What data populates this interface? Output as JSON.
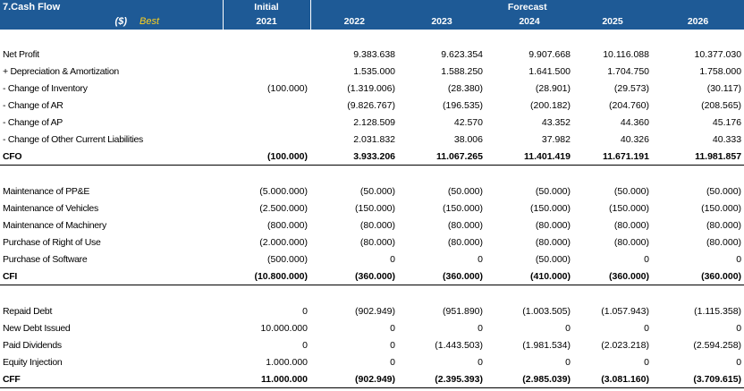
{
  "header": {
    "title": "7.Cash Flow",
    "currency": "($)",
    "scenario": "Best",
    "initial_label": "Initial",
    "initial_year": "2021",
    "forecast_label": "Forecast",
    "years": [
      "2022",
      "2023",
      "2024",
      "2025",
      "2026"
    ]
  },
  "rows": [
    {
      "type": "gap"
    },
    {
      "label": "Net Profit",
      "initial": "",
      "vals": [
        "9.383.638",
        "9.623.354",
        "9.907.668",
        "10.116.088",
        "10.377.030"
      ]
    },
    {
      "label": " + Depreciation & Amortization",
      "initial": "",
      "vals": [
        "1.535.000",
        "1.588.250",
        "1.641.500",
        "1.704.750",
        "1.758.000"
      ]
    },
    {
      "label": " - Change of Inventory",
      "initial": "(100.000)",
      "vals": [
        "(1.319.006)",
        "(28.380)",
        "(28.901)",
        "(29.573)",
        "(30.117)"
      ]
    },
    {
      "label": " - Change of AR",
      "initial": "",
      "vals": [
        "(9.826.767)",
        "(196.535)",
        "(200.182)",
        "(204.760)",
        "(208.565)"
      ]
    },
    {
      "label": " - Change of AP",
      "initial": "",
      "vals": [
        "2.128.509",
        "42.570",
        "43.352",
        "44.360",
        "45.176"
      ]
    },
    {
      "label": " - Change of Other Current Liabilities",
      "initial": "",
      "vals": [
        "2.031.832",
        "38.006",
        "37.982",
        "40.326",
        "40.333"
      ]
    },
    {
      "label": "CFO",
      "initial": "(100.000)",
      "vals": [
        "3.933.206",
        "11.067.265",
        "11.401.419",
        "11.671.191",
        "11.981.857"
      ],
      "total": true
    },
    {
      "type": "spacer"
    },
    {
      "label": "Maintenance of PP&E",
      "initial": "(5.000.000)",
      "vals": [
        "(50.000)",
        "(50.000)",
        "(50.000)",
        "(50.000)",
        "(50.000)"
      ]
    },
    {
      "label": "Maintenance of Vehicles",
      "initial": "(2.500.000)",
      "vals": [
        "(150.000)",
        "(150.000)",
        "(150.000)",
        "(150.000)",
        "(150.000)"
      ]
    },
    {
      "label": "Maintenance of Machinery",
      "initial": "(800.000)",
      "vals": [
        "(80.000)",
        "(80.000)",
        "(80.000)",
        "(80.000)",
        "(80.000)"
      ]
    },
    {
      "label": "Purchase of Right of Use",
      "initial": "(2.000.000)",
      "vals": [
        "(80.000)",
        "(80.000)",
        "(80.000)",
        "(80.000)",
        "(80.000)"
      ]
    },
    {
      "label": "Purchase of Software",
      "initial": "(500.000)",
      "vals": [
        "0",
        "0",
        "(50.000)",
        "0",
        "0"
      ]
    },
    {
      "label": "CFI",
      "initial": "(10.800.000)",
      "vals": [
        "(360.000)",
        "(360.000)",
        "(410.000)",
        "(360.000)",
        "(360.000)"
      ],
      "total": true
    },
    {
      "type": "spacer"
    },
    {
      "label": "Repaid Debt",
      "initial": "0",
      "vals": [
        "(902.949)",
        "(951.890)",
        "(1.003.505)",
        "(1.057.943)",
        "(1.115.358)"
      ]
    },
    {
      "label": "New Debt Issued",
      "initial": "10.000.000",
      "vals": [
        "0",
        "0",
        "0",
        "0",
        "0"
      ]
    },
    {
      "label": "Paid Dividends",
      "initial": "0",
      "vals": [
        "0",
        "(1.443.503)",
        "(1.981.534)",
        "(2.023.218)",
        "(2.594.258)"
      ]
    },
    {
      "label": "Equity Injection",
      "initial": "1.000.000",
      "vals": [
        "0",
        "0",
        "0",
        "0",
        "0"
      ]
    },
    {
      "label": "CFF",
      "initial": "11.000.000",
      "vals": [
        "(902.949)",
        "(2.395.393)",
        "(2.985.039)",
        "(3.081.160)",
        "(3.709.615)"
      ],
      "total": true
    }
  ],
  "colors": {
    "header_bg": "#1e5a96",
    "header_text": "#ffffff",
    "scenario_text": "#ffd21e"
  }
}
